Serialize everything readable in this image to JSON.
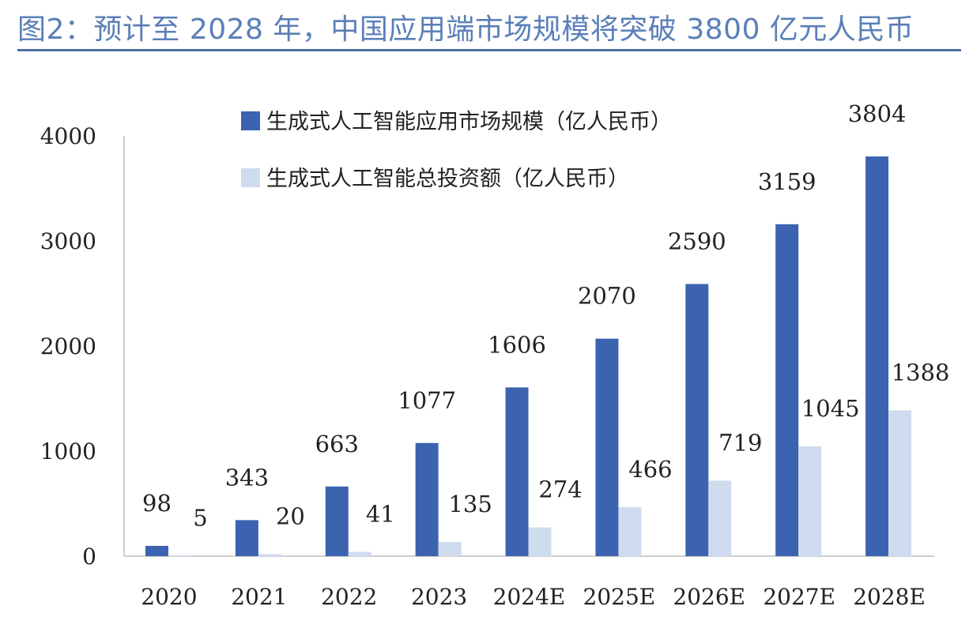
{
  "title": "图2：预计至 2028 年，中国应用端市场规模将突破 3800 亿元人民币",
  "chart_data": {
    "type": "bar",
    "categories": [
      "2020",
      "2021",
      "2022",
      "2023",
      "2024E",
      "2025E",
      "2026E",
      "2027E",
      "2028E"
    ],
    "series": [
      {
        "name": "生成式人工智能应用市场规模（亿人民币）",
        "color": "#3b63b0",
        "values": [
          98,
          343,
          663,
          1077,
          1606,
          2070,
          2590,
          3159,
          3804
        ]
      },
      {
        "name": "生成式人工智能总投资额（亿人民币）",
        "color": "#cfdcf0",
        "values": [
          5,
          20,
          41,
          135,
          274,
          466,
          719,
          1045,
          1388
        ]
      }
    ],
    "ylim": [
      0,
      4000
    ],
    "yticks": [
      "0",
      "1000",
      "2000",
      "3000",
      "4000"
    ],
    "legend_position": "top-left",
    "grid": false
  }
}
